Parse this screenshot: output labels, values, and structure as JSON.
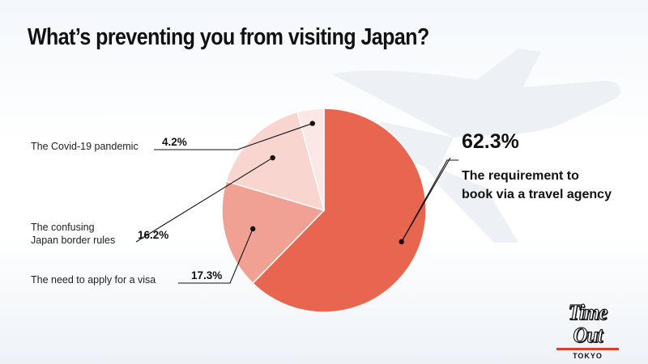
{
  "title": "What’s preventing you from visiting Japan?",
  "chart_data": {
    "type": "pie",
    "title": "What’s preventing you from visiting Japan?",
    "slices": [
      {
        "label": "The requirement to book via a travel agency",
        "value": 62.3,
        "value_label": "62.3%",
        "color": "#e8664f"
      },
      {
        "label": "The need to apply for a visa",
        "value": 17.3,
        "value_label": "17.3%",
        "color": "#f0a193"
      },
      {
        "label": "The confusing Japan border rules",
        "value": 16.2,
        "value_label": "16.2%",
        "color": "#f8d5cf"
      },
      {
        "label": "The Covid-19 pandemic",
        "value": 4.2,
        "value_label": "4.2%",
        "color": "#fbe7e3"
      }
    ],
    "start_angle_deg": 0,
    "direction": "clockwise"
  },
  "brand": {
    "logo_text": "Time Out",
    "logo_subtext": "TOKYO",
    "accent_color": "#e23a2e"
  }
}
